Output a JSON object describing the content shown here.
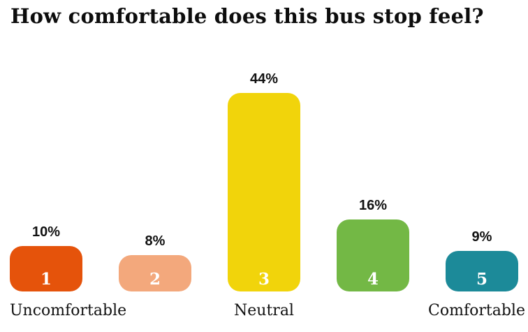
{
  "title": "How comfortable does this bus stop feel?",
  "chart_data": {
    "type": "bar",
    "title": "How comfortable does this bus stop feel?",
    "categories": [
      "1",
      "2",
      "3",
      "4",
      "5"
    ],
    "values": [
      10,
      8,
      44,
      16,
      9
    ],
    "unit": "%",
    "bars": [
      {
        "number": "1",
        "value": 10,
        "pct_label": "10%",
        "color": "#E5530B"
      },
      {
        "number": "2",
        "value": 8,
        "pct_label": "8%",
        "color": "#F3A87C"
      },
      {
        "number": "3",
        "value": 44,
        "pct_label": "44%",
        "color": "#F1D40B"
      },
      {
        "number": "4",
        "value": 16,
        "pct_label": "16%",
        "color": "#73B845"
      },
      {
        "number": "5",
        "value": 9,
        "pct_label": "9%",
        "color": "#1C8A99"
      }
    ],
    "axis_labels": {
      "left": "Uncomfortable",
      "center": "Neutral",
      "right": "Comfortable"
    },
    "xlabel": "",
    "ylabel": "",
    "ylim": [
      0,
      50
    ],
    "grid": false,
    "legend": false
  },
  "colors": {
    "text": "#111111",
    "background": "#FFFFFF"
  }
}
